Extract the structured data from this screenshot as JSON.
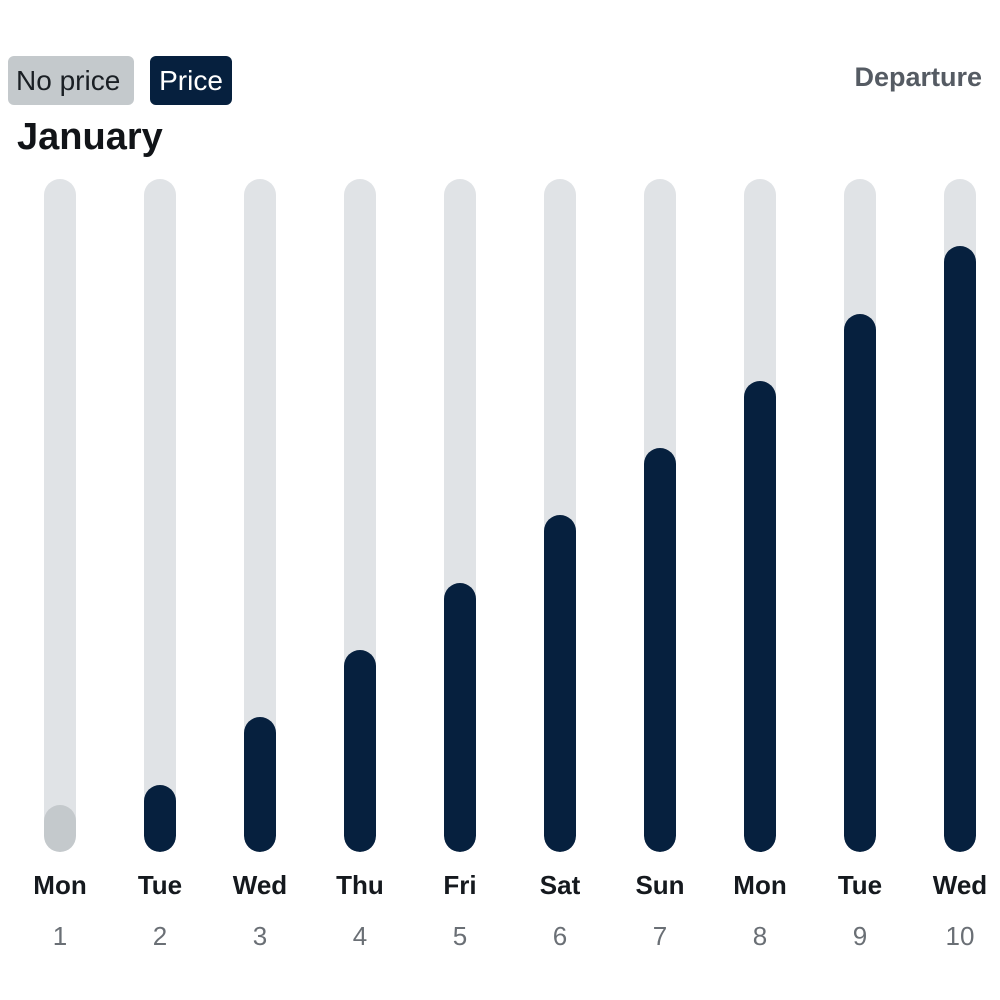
{
  "legend": {
    "no_price_label": "No price",
    "price_label": "Price"
  },
  "header": {
    "mode_label": "Departure",
    "month": "January"
  },
  "colors": {
    "price": "#06203e",
    "no_price": "#c4c9cc",
    "track": "#e0e3e6"
  },
  "chart_data": {
    "type": "bar",
    "categories": [
      "1",
      "2",
      "3",
      "4",
      "5",
      "6",
      "7",
      "8",
      "9",
      "10"
    ],
    "day_names": [
      "Mon",
      "Tue",
      "Wed",
      "Thu",
      "Fri",
      "Sat",
      "Sun",
      "Mon",
      "Tue",
      "Wed"
    ],
    "series": [
      {
        "values": [
          0.07,
          0.1,
          0.2,
          0.3,
          0.4,
          0.5,
          0.6,
          0.7,
          0.8,
          0.9
        ],
        "has_price": [
          false,
          true,
          true,
          true,
          true,
          true,
          true,
          true,
          true,
          true
        ]
      }
    ],
    "ylim": [
      0,
      1
    ],
    "grid": false,
    "legend_position": "top-left"
  }
}
